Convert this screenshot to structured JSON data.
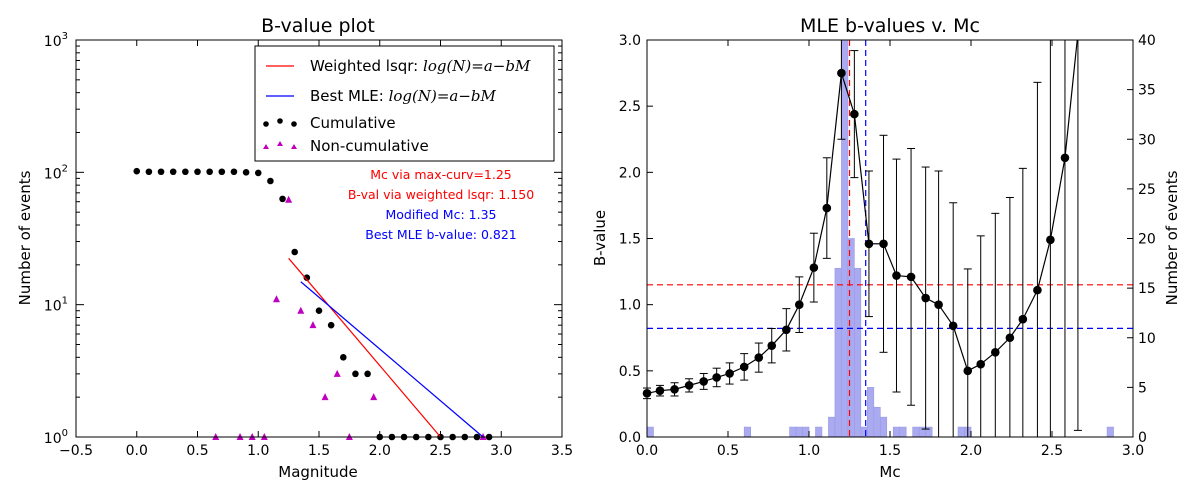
{
  "chart_data": [
    {
      "type": "scatter",
      "title": "B-value plot",
      "xlabel": "Magnitude",
      "ylabel": "Number of events",
      "xlim": [
        -0.5,
        3.5
      ],
      "ylim": [
        1,
        1000
      ],
      "yscale": "log",
      "xticks": [
        "−0.5",
        "0.0",
        "0.5",
        "1.0",
        "1.5",
        "2.0",
        "2.5",
        "3.0",
        "3.5"
      ],
      "yticks": [
        {
          "base": "10",
          "exp": "0"
        },
        {
          "base": "10",
          "exp": "1"
        },
        {
          "base": "10",
          "exp": "2"
        },
        {
          "base": "10",
          "exp": "3"
        }
      ],
      "legend_position": "top-right",
      "legend": [
        {
          "label_text": "Weighted lsqr: ",
          "formula": "log(N)=a−bM",
          "marker": "line",
          "color": "#ff0000"
        },
        {
          "label_text": "Best MLE: ",
          "formula": "log(N)=a−bM",
          "marker": "line",
          "color": "#0000ff"
        },
        {
          "label_text": "Cumulative",
          "formula": "",
          "marker": "dots",
          "color": "#000000"
        },
        {
          "label_text": "Non-cumulative",
          "formula": "",
          "marker": "triangles",
          "color": "#bf00bf"
        }
      ],
      "annotations": [
        {
          "text": "Mc via max-curv=1.25",
          "color": "#ff0000"
        },
        {
          "text": "B-val via weighted lsqr: 1.150",
          "color": "#ff0000"
        },
        {
          "text": "Modified Mc: 1.35",
          "color": "#0000ff"
        },
        {
          "text": "Best MLE b-value: 0.821",
          "color": "#0000ff"
        }
      ],
      "series": [
        {
          "name": "Cumulative",
          "color": "#000000",
          "marker": "circle",
          "x": [
            0.0,
            0.1,
            0.2,
            0.3,
            0.4,
            0.5,
            0.6,
            0.7,
            0.8,
            0.9,
            1.0,
            1.1,
            1.2,
            1.3,
            1.4,
            1.5,
            1.6,
            1.7,
            1.8,
            1.9,
            2.0,
            2.1,
            2.2,
            2.3,
            2.4,
            2.5,
            2.6,
            2.7,
            2.8,
            2.9
          ],
          "y": [
            102,
            101,
            101,
            101,
            101,
            101,
            101,
            101,
            101,
            100,
            99,
            86,
            63,
            25,
            16,
            9,
            7,
            4,
            3,
            3,
            1,
            1,
            1,
            1,
            1,
            1,
            1,
            1,
            1,
            1
          ]
        },
        {
          "name": "Non-cumulative",
          "color": "#bf00bf",
          "marker": "triangle",
          "x": [
            0.65,
            0.85,
            0.95,
            1.05,
            1.15,
            1.25,
            1.35,
            1.45,
            1.55,
            1.65,
            1.75,
            1.95,
            2.85
          ],
          "y": [
            1,
            1,
            1,
            1,
            11,
            62,
            9,
            7,
            2,
            3,
            1,
            2,
            1
          ]
        },
        {
          "name": "Weighted lsqr",
          "color": "#ff0000",
          "marker": "line",
          "x": [
            1.25,
            2.5
          ],
          "y": [
            22.4,
            1.0
          ]
        },
        {
          "name": "Best MLE",
          "color": "#0000ff",
          "marker": "line",
          "x": [
            1.35,
            2.85
          ],
          "y": [
            14.9,
            1.0
          ]
        }
      ]
    },
    {
      "type": "line",
      "title": "MLE b-values v. Mc",
      "xlabel": "Mc",
      "ylabel": "B-value",
      "y2label": "Number of events",
      "xlim": [
        0.0,
        3.0
      ],
      "ylim": [
        0.0,
        3.0
      ],
      "y2lim": [
        0,
        40
      ],
      "xticks": [
        "0.0",
        "0.5",
        "1.0",
        "1.5",
        "2.0",
        "2.5",
        "3.0"
      ],
      "yticks": [
        "0.0",
        "0.5",
        "1.0",
        "1.5",
        "2.0",
        "2.5",
        "3.0"
      ],
      "y2ticks": [
        "0",
        "5",
        "10",
        "15",
        "20",
        "25",
        "30",
        "35",
        "40"
      ],
      "hlines": [
        {
          "y": 1.15,
          "color": "#ff0000",
          "style": "dashed"
        },
        {
          "y": 0.821,
          "color": "#0000ff",
          "style": "dashed"
        }
      ],
      "vlines": [
        {
          "x": 1.25,
          "color": "#ff0000",
          "style": "dashed"
        },
        {
          "x": 1.35,
          "color": "#0000ff",
          "style": "dashed"
        }
      ],
      "histogram": {
        "color": "#aaaaf0",
        "bin_width": 0.04,
        "bins_left": [
          0.0,
          0.6,
          0.88,
          0.92,
          0.96,
          1.04,
          1.12,
          1.16,
          1.2,
          1.24,
          1.28,
          1.32,
          1.36,
          1.4,
          1.44,
          1.52,
          1.56,
          1.64,
          1.68,
          1.72,
          1.92,
          1.96,
          2.84
        ],
        "counts": [
          1,
          1,
          1,
          1,
          1,
          1,
          2,
          17,
          40,
          20,
          17,
          1,
          5,
          3,
          2,
          1,
          1,
          1,
          1,
          1,
          1,
          1,
          1
        ]
      },
      "series": [
        {
          "name": "MLE b-value",
          "color": "#000000",
          "marker": "circle",
          "x": [
            0.0,
            0.08,
            0.17,
            0.26,
            0.35,
            0.43,
            0.51,
            0.6,
            0.69,
            0.77,
            0.86,
            0.94,
            1.03,
            1.11,
            1.2,
            1.28,
            1.37,
            1.46,
            1.54,
            1.63,
            1.72,
            1.8,
            1.89,
            1.98,
            2.06,
            2.15,
            2.24,
            2.32,
            2.41,
            2.49,
            2.58,
            2.66
          ],
          "y": [
            0.33,
            0.35,
            0.36,
            0.39,
            0.42,
            0.45,
            0.48,
            0.53,
            0.6,
            0.69,
            0.81,
            1.0,
            1.28,
            1.73,
            2.75,
            2.44,
            1.46,
            1.46,
            1.22,
            1.21,
            1.05,
            1.0,
            0.84,
            0.5,
            0.55,
            0.64,
            0.75,
            0.89,
            1.11,
            1.49,
            2.11,
            3.05
          ],
          "yerr": [
            0.04,
            0.04,
            0.05,
            0.05,
            0.06,
            0.07,
            0.08,
            0.1,
            0.11,
            0.13,
            0.16,
            0.21,
            0.26,
            0.38,
            0.5,
            0.48,
            0.55,
            0.82,
            0.88,
            0.97,
            0.99,
            1.01,
            0.93,
            0.77,
            0.97,
            1.05,
            1.06,
            1.14,
            1.57,
            2.0,
            2.35,
            3.0
          ]
        }
      ]
    }
  ]
}
